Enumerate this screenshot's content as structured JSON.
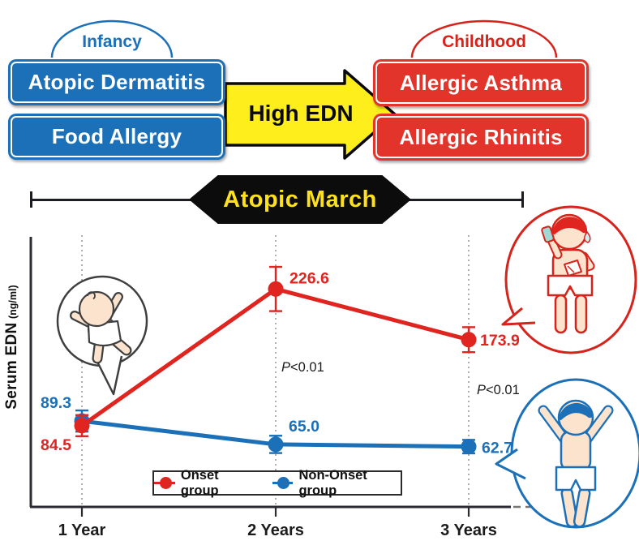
{
  "figure": {
    "stage_left": "Infancy",
    "stage_right": "Childhood",
    "left_boxes": [
      "Atopic Dermatitis",
      "Food Allergy"
    ],
    "right_boxes": [
      "Allergic Asthma",
      "Allergic Rhinitis"
    ],
    "arrow_label": "High EDN",
    "banner_label": "Atopic March"
  },
  "colors": {
    "blue": "#1b70b8",
    "red_box": "#e2342a",
    "red_line": "#e02420",
    "yellow": "#fdee1c",
    "banner_bg": "#0c0c0c",
    "banner_text": "#fde21b",
    "axis": "#2b2b33",
    "gridline": "#9a9a9a",
    "skin": "#fbe3cd",
    "inhaler": "#9fd8d4"
  },
  "chart_data": {
    "type": "line",
    "title": "",
    "xlabel": "",
    "ylabel": "Serum EDN",
    "ylabel_unit": "(ng/ml)",
    "categories": [
      "1 Year",
      "2 Years",
      "3 Years"
    ],
    "series": [
      {
        "name": "Onset group",
        "color": "#e02420",
        "values": [
          84.5,
          226.6,
          173.9
        ],
        "errors": [
          11,
          23,
          13
        ]
      },
      {
        "name": "Non-Onset group",
        "color": "#1b70b8",
        "values": [
          89.3,
          65.0,
          62.7
        ],
        "errors": [
          11,
          9,
          7
        ]
      }
    ],
    "annotations": [
      {
        "text": "P<0.01",
        "at_category": "2 Years"
      },
      {
        "text": "P<0.01",
        "at_category": "3 Years"
      }
    ],
    "ylim": [
      0,
      280
    ],
    "grid": "dotted vertical gridline at each category",
    "legend_position": "bottom-center",
    "legend": [
      {
        "label": "Onset group",
        "color": "#e02420"
      },
      {
        "label": "Non-Onset group",
        "color": "#1b70b8"
      }
    ]
  },
  "illustrations": {
    "baby": "infant in diaper inside speech bubble (1 Year)",
    "asthma_boy": "boy using inhaler inside red speech bubble (Onset group)",
    "healthy_boy": "healthy boy with raised arms inside blue speech bubble (Non-Onset group)"
  }
}
